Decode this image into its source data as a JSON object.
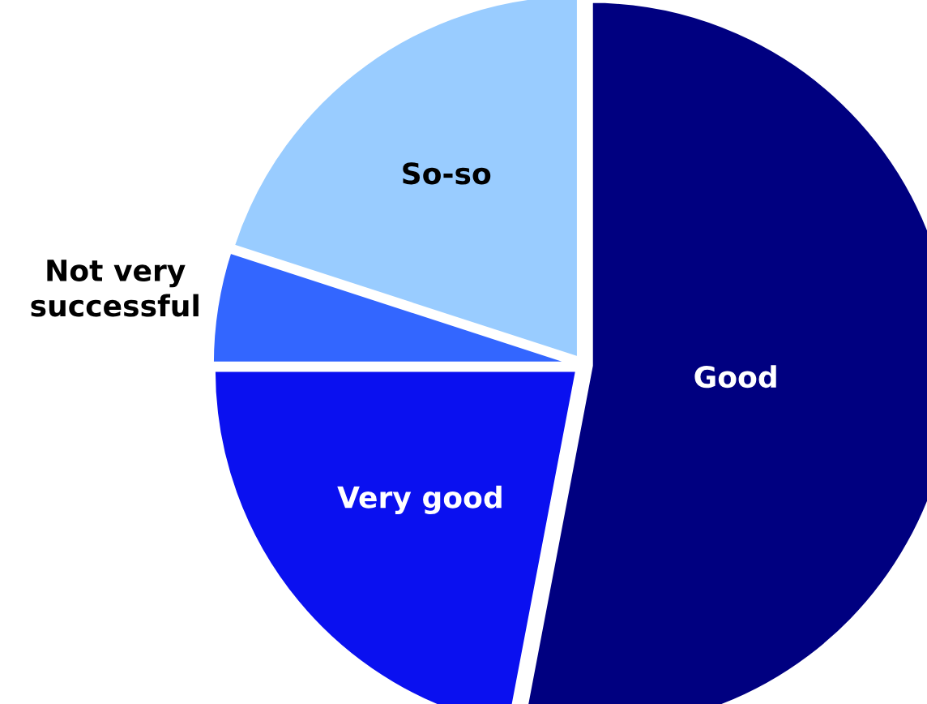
{
  "chart_data": {
    "type": "pie",
    "categories": [
      "Good",
      "Very good",
      "Not very\nsuccessful",
      "So-so"
    ],
    "values": [
      53,
      22,
      5,
      20
    ],
    "colors": [
      "#000080",
      "#0a10f0",
      "#3366ff",
      "#99ccff"
    ]
  }
}
